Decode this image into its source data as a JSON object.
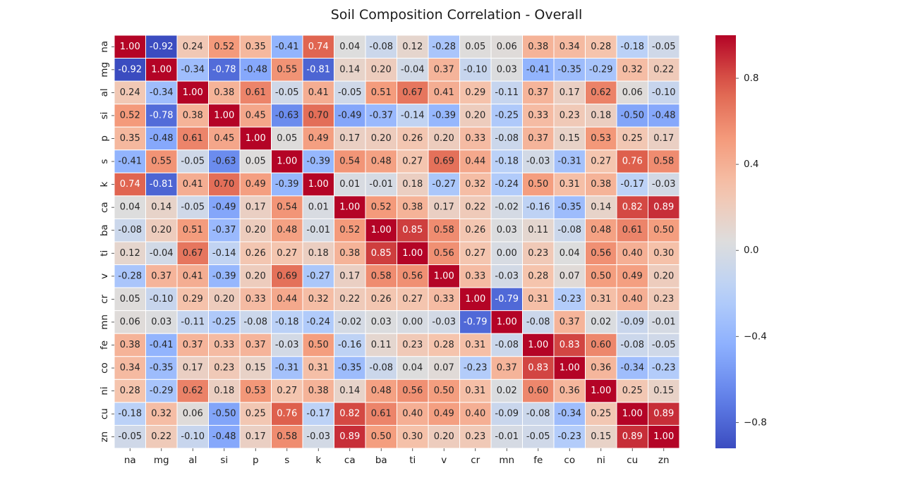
{
  "chart_data": {
    "type": "heatmap",
    "title": "Soil Composition Correlation - Overall",
    "xlabel": "",
    "ylabel": "",
    "categories": [
      "na",
      "mg",
      "al",
      "si",
      "p",
      "s",
      "k",
      "ca",
      "ba",
      "ti",
      "v",
      "cr",
      "mn",
      "fe",
      "co",
      "ni",
      "cu",
      "zn"
    ],
    "values": [
      [
        1.0,
        -0.92,
        0.24,
        0.52,
        0.35,
        -0.41,
        0.74,
        0.04,
        -0.08,
        0.12,
        -0.28,
        0.05,
        0.06,
        0.38,
        0.34,
        0.28,
        -0.18,
        -0.05
      ],
      [
        -0.92,
        1.0,
        -0.34,
        -0.78,
        -0.48,
        0.55,
        -0.81,
        0.14,
        0.2,
        -0.04,
        0.37,
        -0.1,
        0.03,
        -0.41,
        -0.35,
        -0.29,
        0.32,
        0.22
      ],
      [
        0.24,
        -0.34,
        1.0,
        0.38,
        0.61,
        -0.05,
        0.41,
        -0.05,
        0.51,
        0.67,
        0.41,
        0.29,
        -0.11,
        0.37,
        0.17,
        0.62,
        0.06,
        -0.1
      ],
      [
        0.52,
        -0.78,
        0.38,
        1.0,
        0.45,
        -0.63,
        0.7,
        -0.49,
        -0.37,
        -0.14,
        -0.39,
        0.2,
        -0.25,
        0.33,
        0.23,
        0.18,
        -0.5,
        -0.48
      ],
      [
        0.35,
        -0.48,
        0.61,
        0.45,
        1.0,
        0.05,
        0.49,
        0.17,
        0.2,
        0.26,
        0.2,
        0.33,
        -0.08,
        0.37,
        0.15,
        0.53,
        0.25,
        0.17
      ],
      [
        -0.41,
        0.55,
        -0.05,
        -0.63,
        0.05,
        1.0,
        -0.39,
        0.54,
        0.48,
        0.27,
        0.69,
        0.44,
        -0.18,
        -0.03,
        -0.31,
        0.27,
        0.76,
        0.58
      ],
      [
        0.74,
        -0.81,
        0.41,
        0.7,
        0.49,
        -0.39,
        1.0,
        0.01,
        -0.01,
        0.18,
        -0.27,
        0.32,
        -0.24,
        0.5,
        0.31,
        0.38,
        -0.17,
        -0.03
      ],
      [
        0.04,
        0.14,
        -0.05,
        -0.49,
        0.17,
        0.54,
        0.01,
        1.0,
        0.52,
        0.38,
        0.17,
        0.22,
        -0.02,
        -0.16,
        -0.35,
        0.14,
        0.82,
        0.89
      ],
      [
        -0.08,
        0.2,
        0.51,
        -0.37,
        0.2,
        0.48,
        -0.01,
        0.52,
        1.0,
        0.85,
        0.58,
        0.26,
        0.03,
        0.11,
        -0.08,
        0.48,
        0.61,
        0.5
      ],
      [
        0.12,
        -0.04,
        0.67,
        -0.14,
        0.26,
        0.27,
        0.18,
        0.38,
        0.85,
        1.0,
        0.56,
        0.27,
        0.0,
        0.23,
        0.04,
        0.56,
        0.4,
        0.3
      ],
      [
        -0.28,
        0.37,
        0.41,
        -0.39,
        0.2,
        0.69,
        -0.27,
        0.17,
        0.58,
        0.56,
        1.0,
        0.33,
        -0.03,
        0.28,
        0.07,
        0.5,
        0.49,
        0.2
      ],
      [
        0.05,
        -0.1,
        0.29,
        0.2,
        0.33,
        0.44,
        0.32,
        0.22,
        0.26,
        0.27,
        0.33,
        1.0,
        -0.79,
        0.31,
        -0.23,
        0.31,
        0.4,
        0.23
      ],
      [
        0.06,
        0.03,
        -0.11,
        -0.25,
        -0.08,
        -0.18,
        -0.24,
        -0.02,
        0.03,
        0.0,
        -0.03,
        -0.79,
        1.0,
        -0.08,
        0.37,
        0.02,
        -0.09,
        -0.01
      ],
      [
        0.38,
        -0.41,
        0.37,
        0.33,
        0.37,
        -0.03,
        0.5,
        -0.16,
        0.11,
        0.23,
        0.28,
        0.31,
        -0.08,
        1.0,
        0.83,
        0.6,
        -0.08,
        -0.05
      ],
      [
        0.34,
        -0.35,
        0.17,
        0.23,
        0.15,
        -0.31,
        0.31,
        -0.35,
        -0.08,
        0.04,
        0.07,
        -0.23,
        0.37,
        0.83,
        1.0,
        0.36,
        -0.34,
        -0.23
      ],
      [
        0.28,
        -0.29,
        0.62,
        0.18,
        0.53,
        0.27,
        0.38,
        0.14,
        0.48,
        0.56,
        0.5,
        0.31,
        0.02,
        0.6,
        0.36,
        1.0,
        0.25,
        0.15
      ],
      [
        -0.18,
        0.32,
        0.06,
        -0.5,
        0.25,
        0.76,
        -0.17,
        0.82,
        0.61,
        0.4,
        0.49,
        0.4,
        -0.09,
        -0.08,
        -0.34,
        0.25,
        1.0,
        0.89
      ],
      [
        -0.05,
        0.22,
        -0.1,
        -0.48,
        0.17,
        0.58,
        -0.03,
        0.89,
        0.5,
        0.3,
        0.2,
        0.23,
        -0.01,
        -0.05,
        -0.23,
        0.15,
        0.89,
        1.0
      ]
    ],
    "value_format": "2 decimals",
    "colormap": "coolwarm",
    "color_range": [
      -0.92,
      1.0
    ],
    "colorbar": {
      "ticks": [
        -0.8,
        -0.4,
        0.0,
        0.4,
        0.8
      ],
      "tick_labels": [
        "−0.8",
        "−0.4",
        "0.0",
        "0.4",
        "0.8"
      ],
      "position": "right"
    },
    "cell_border_color": "#ffffff",
    "grid": false
  }
}
